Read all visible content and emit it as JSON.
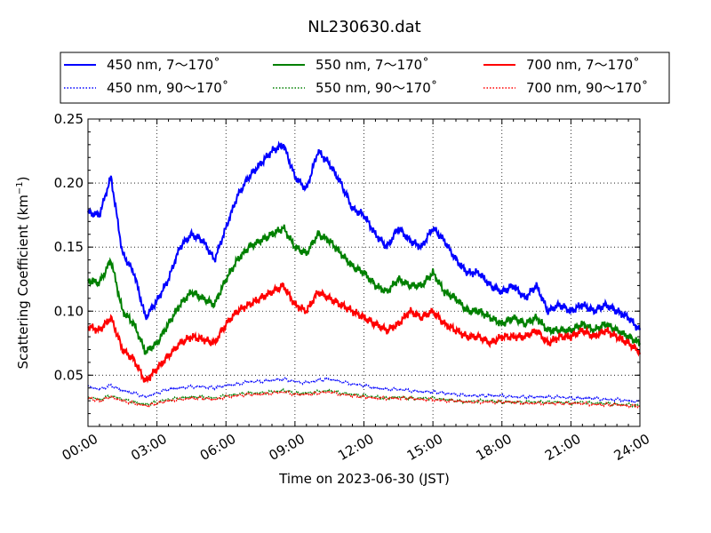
{
  "chart_data": {
    "type": "line",
    "title": "NL230630.dat",
    "xlabel": "Time on 2023-06-30 (JST)",
    "ylabel_main": "Scattering Coefficient (km",
    "ylabel_sup": "−1",
    "ylabel_close": ")",
    "xlim": [
      "00:00",
      "24:00"
    ],
    "ylim": [
      0.01,
      0.25
    ],
    "xticks": [
      "00:00",
      "03:00",
      "06:00",
      "09:00",
      "12:00",
      "15:00",
      "18:00",
      "21:00",
      "24:00"
    ],
    "yticks": [
      "0.05",
      "0.10",
      "0.15",
      "0.20",
      "0.25"
    ],
    "grid": true,
    "legend_position": "top",
    "x_hours": [
      0,
      0.5,
      1,
      1.5,
      2,
      2.5,
      3,
      3.5,
      4,
      4.5,
      5,
      5.5,
      6,
      6.5,
      7,
      7.5,
      8,
      8.5,
      9,
      9.5,
      10,
      10.5,
      11,
      11.5,
      12,
      12.5,
      13,
      13.5,
      14,
      14.5,
      15,
      15.5,
      16,
      16.5,
      17,
      17.5,
      18,
      18.5,
      19,
      19.5,
      20,
      20.5,
      21,
      21.5,
      22,
      22.5,
      23,
      23.5,
      24
    ],
    "series": [
      {
        "name": "450 nm, 7～170˚",
        "color": "#0000ff",
        "style": "solid",
        "values": [
          0.177,
          0.175,
          0.205,
          0.145,
          0.13,
          0.095,
          0.108,
          0.125,
          0.15,
          0.16,
          0.155,
          0.14,
          0.165,
          0.19,
          0.205,
          0.215,
          0.225,
          0.23,
          0.205,
          0.195,
          0.225,
          0.215,
          0.2,
          0.18,
          0.175,
          0.16,
          0.15,
          0.165,
          0.155,
          0.15,
          0.165,
          0.155,
          0.14,
          0.13,
          0.13,
          0.12,
          0.115,
          0.12,
          0.11,
          0.12,
          0.1,
          0.105,
          0.1,
          0.105,
          0.1,
          0.105,
          0.1,
          0.095,
          0.085
        ]
      },
      {
        "name": "450 nm, 90～170˚",
        "color": "#0000ff",
        "style": "dotted",
        "values": [
          0.041,
          0.039,
          0.042,
          0.038,
          0.036,
          0.033,
          0.036,
          0.039,
          0.04,
          0.041,
          0.041,
          0.04,
          0.042,
          0.043,
          0.045,
          0.045,
          0.046,
          0.047,
          0.045,
          0.044,
          0.046,
          0.047,
          0.045,
          0.043,
          0.042,
          0.04,
          0.039,
          0.039,
          0.038,
          0.037,
          0.037,
          0.036,
          0.035,
          0.034,
          0.034,
          0.034,
          0.034,
          0.033,
          0.033,
          0.033,
          0.033,
          0.033,
          0.032,
          0.032,
          0.032,
          0.031,
          0.031,
          0.03,
          0.029
        ]
      },
      {
        "name": "550 nm, 7～170˚",
        "color": "#008000",
        "style": "solid",
        "values": [
          0.124,
          0.122,
          0.14,
          0.1,
          0.09,
          0.068,
          0.075,
          0.09,
          0.105,
          0.115,
          0.11,
          0.105,
          0.125,
          0.14,
          0.15,
          0.155,
          0.16,
          0.165,
          0.15,
          0.145,
          0.16,
          0.155,
          0.145,
          0.135,
          0.13,
          0.12,
          0.115,
          0.125,
          0.12,
          0.12,
          0.13,
          0.115,
          0.11,
          0.1,
          0.1,
          0.095,
          0.09,
          0.095,
          0.09,
          0.095,
          0.085,
          0.085,
          0.085,
          0.09,
          0.085,
          0.09,
          0.085,
          0.08,
          0.075
        ]
      },
      {
        "name": "550 nm, 90～170˚",
        "color": "#008000",
        "style": "dotted",
        "values": [
          0.033,
          0.031,
          0.034,
          0.031,
          0.029,
          0.027,
          0.029,
          0.031,
          0.032,
          0.033,
          0.033,
          0.032,
          0.034,
          0.035,
          0.036,
          0.036,
          0.037,
          0.038,
          0.036,
          0.036,
          0.037,
          0.038,
          0.036,
          0.035,
          0.034,
          0.033,
          0.032,
          0.033,
          0.032,
          0.032,
          0.032,
          0.031,
          0.03,
          0.029,
          0.03,
          0.03,
          0.029,
          0.029,
          0.029,
          0.029,
          0.029,
          0.029,
          0.028,
          0.029,
          0.028,
          0.028,
          0.027,
          0.027,
          0.026
        ]
      },
      {
        "name": "700 nm, 7～170˚",
        "color": "#ff0000",
        "style": "solid",
        "values": [
          0.088,
          0.085,
          0.095,
          0.07,
          0.062,
          0.045,
          0.055,
          0.065,
          0.075,
          0.08,
          0.078,
          0.075,
          0.09,
          0.1,
          0.105,
          0.11,
          0.115,
          0.12,
          0.105,
          0.1,
          0.115,
          0.11,
          0.105,
          0.1,
          0.095,
          0.09,
          0.085,
          0.09,
          0.1,
          0.095,
          0.1,
          0.09,
          0.085,
          0.08,
          0.08,
          0.075,
          0.08,
          0.08,
          0.08,
          0.085,
          0.075,
          0.08,
          0.08,
          0.085,
          0.08,
          0.085,
          0.08,
          0.075,
          0.068
        ]
      },
      {
        "name": "700 nm, 90～170˚",
        "color": "#ff0000",
        "style": "dotted",
        "values": [
          0.032,
          0.03,
          0.033,
          0.03,
          0.028,
          0.026,
          0.028,
          0.03,
          0.031,
          0.032,
          0.032,
          0.031,
          0.033,
          0.034,
          0.035,
          0.035,
          0.036,
          0.037,
          0.035,
          0.035,
          0.036,
          0.037,
          0.035,
          0.034,
          0.033,
          0.032,
          0.032,
          0.032,
          0.032,
          0.031,
          0.031,
          0.03,
          0.03,
          0.029,
          0.029,
          0.029,
          0.029,
          0.029,
          0.028,
          0.028,
          0.028,
          0.028,
          0.028,
          0.028,
          0.027,
          0.027,
          0.027,
          0.026,
          0.026
        ]
      }
    ]
  }
}
